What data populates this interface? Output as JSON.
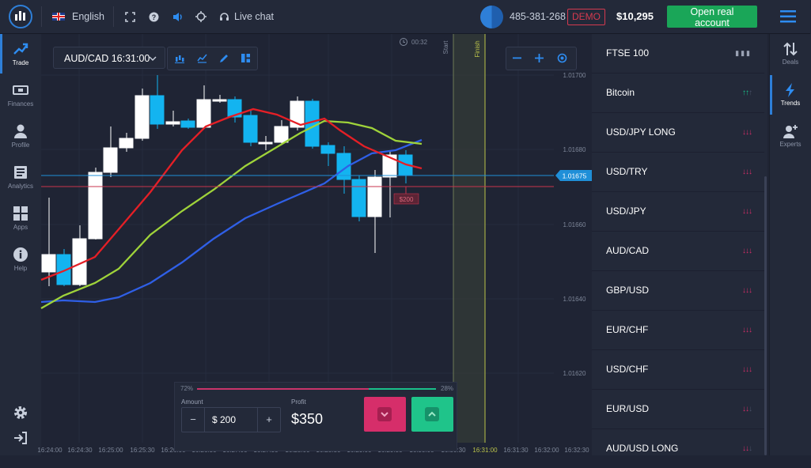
{
  "topbar": {
    "language": "English",
    "live_chat": "Live chat",
    "account_id": "485-381-268",
    "mode_badge": "DEMO",
    "balance": "$10,295",
    "open_account_label": "Open real account"
  },
  "left_nav": [
    {
      "label": "Trade",
      "icon": "trend-up-icon",
      "active": true
    },
    {
      "label": "Finances",
      "icon": "cash-icon"
    },
    {
      "label": "Profile",
      "icon": "user-icon"
    },
    {
      "label": "Analytics",
      "icon": "news-icon"
    },
    {
      "label": "Apps",
      "icon": "grid-icon"
    },
    {
      "label": "Help",
      "icon": "info-icon"
    }
  ],
  "chart": {
    "pair_label": "AUD/CAD 16:31:00",
    "timer": "00:32",
    "start_label": "Start",
    "finish_label": "Finish",
    "current_price": "1.01675",
    "bet_tag": "$200",
    "price_ticks": [
      "1.01700",
      "1.01680",
      "1.01660",
      "1.01640",
      "1.01620"
    ],
    "time_ticks": [
      "16:24:00",
      "16:24:30",
      "16:25:00",
      "16:25:30",
      "16:26:00",
      "16:26:30",
      "16:27:00",
      "16:27:30",
      "16:28:00",
      "16:28:30",
      "16:29:00",
      "16:29:30",
      "16:30:00",
      "16:30:30",
      "16:31:00",
      "16:31:30",
      "16:32:00",
      "16:32:30"
    ],
    "accent": "#2e7fd8",
    "up_color": "#ffffff",
    "down_color": "#13b4f0"
  },
  "trade": {
    "down_pct": "72%",
    "up_pct": "28%",
    "amount_label": "Amount",
    "amount_value": "$ 200",
    "profit_label": "Profit",
    "profit_value": "$350"
  },
  "assets": [
    {
      "name": "FTSE 100",
      "trend": "flat"
    },
    {
      "name": "Bitcoin",
      "trend": "up"
    },
    {
      "name": "USD/JPY LONG",
      "trend": "down"
    },
    {
      "name": "USD/TRY",
      "trend": "down"
    },
    {
      "name": "USD/JPY",
      "trend": "down"
    },
    {
      "name": "AUD/CAD",
      "trend": "down"
    },
    {
      "name": "GBP/USD",
      "trend": "down"
    },
    {
      "name": "EUR/CHF",
      "trend": "down"
    },
    {
      "name": "USD/CHF",
      "trend": "down"
    },
    {
      "name": "EUR/USD",
      "trend": "down"
    },
    {
      "name": "AUD/USD LONG",
      "trend": "down"
    }
  ],
  "right_nav": [
    {
      "label": "Deals",
      "icon": "swap-icon"
    },
    {
      "label": "Trends",
      "icon": "lightning-icon",
      "active": true
    },
    {
      "label": "Experts",
      "icon": "add-user-icon"
    }
  ]
}
